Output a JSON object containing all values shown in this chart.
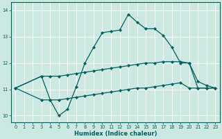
{
  "xlabel": "Humidex (Indice chaleur)",
  "xlim": [
    -0.5,
    23.5
  ],
  "ylim": [
    9.75,
    14.3
  ],
  "xticks": [
    0,
    1,
    2,
    3,
    4,
    5,
    6,
    7,
    8,
    9,
    10,
    11,
    12,
    13,
    14,
    15,
    16,
    17,
    18,
    19,
    20,
    21,
    22,
    23
  ],
  "yticks": [
    10,
    11,
    12,
    13,
    14
  ],
  "bg_color": "#cce8e0",
  "line_color": "#006060",
  "grid_color": "#b0d8d0",
  "line1_x": [
    0,
    3,
    4,
    5,
    6,
    7,
    8,
    9,
    10,
    11,
    12,
    13,
    14,
    15,
    16,
    17,
    18,
    19,
    20,
    21,
    22,
    23
  ],
  "line1_y": [
    11.05,
    11.5,
    10.6,
    10.0,
    10.25,
    11.1,
    12.0,
    12.6,
    13.15,
    13.2,
    13.25,
    13.85,
    13.55,
    13.3,
    13.3,
    13.05,
    12.6,
    12.0,
    12.0,
    11.3,
    11.15,
    11.05
  ],
  "line2_x": [
    0,
    3,
    4,
    5,
    6,
    7,
    8,
    9,
    10,
    11,
    12,
    13,
    14,
    15,
    16,
    17,
    18,
    19,
    20,
    21,
    22,
    23
  ],
  "line2_y": [
    11.05,
    11.5,
    11.5,
    11.5,
    11.55,
    11.6,
    11.65,
    11.7,
    11.75,
    11.8,
    11.85,
    11.9,
    11.95,
    12.0,
    12.0,
    12.05,
    12.05,
    12.05,
    12.0,
    11.05,
    11.05,
    11.05
  ],
  "line3_x": [
    0,
    3,
    4,
    5,
    6,
    7,
    8,
    9,
    10,
    11,
    12,
    13,
    14,
    15,
    16,
    17,
    18,
    19,
    20,
    21,
    22,
    23
  ],
  "line3_y": [
    11.05,
    10.6,
    10.6,
    10.6,
    10.65,
    10.7,
    10.75,
    10.8,
    10.85,
    10.9,
    10.95,
    11.0,
    11.05,
    11.05,
    11.1,
    11.15,
    11.2,
    11.25,
    11.05,
    11.05,
    11.05,
    11.05
  ]
}
